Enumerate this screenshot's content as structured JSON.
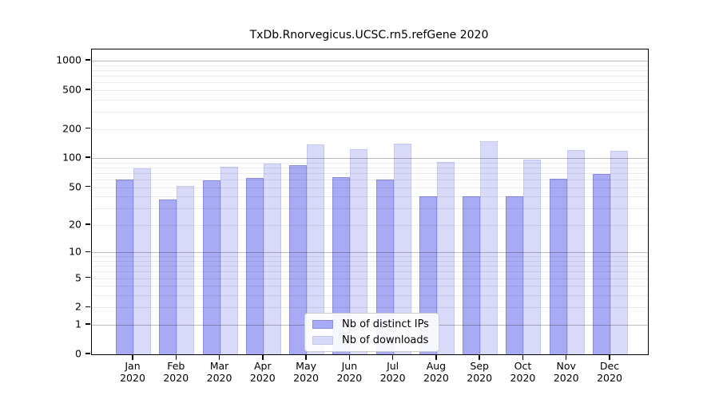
{
  "chart_data": {
    "type": "bar",
    "title": "TxDb.Rnorvegicus.UCSC.rn5.refGene 2020",
    "x_year": "2020",
    "categories": [
      "Jan",
      "Feb",
      "Mar",
      "Apr",
      "May",
      "Jun",
      "Jul",
      "Aug",
      "Sep",
      "Oct",
      "Nov",
      "Dec"
    ],
    "series": [
      {
        "name": "Nb of distinct IPs",
        "fill": "#a8aaf4",
        "edge": "#8b8de0",
        "values": [
          60,
          37,
          59,
          62,
          84,
          63,
          60,
          40,
          40,
          40,
          61,
          68
        ]
      },
      {
        "name": "Nb of downloads",
        "fill": "#d9daf9",
        "edge": "#c5c7f2",
        "values": [
          78,
          52,
          81,
          88,
          139,
          124,
          141,
          91,
          149,
          97,
          121,
          119
        ]
      }
    ],
    "y_ticks": [
      0,
      1,
      2,
      5,
      10,
      20,
      50,
      100,
      200,
      500,
      1000
    ],
    "y_scale": "log10(value+1)",
    "ylim": [
      0,
      1300
    ],
    "grid": true,
    "legend_position": "lower center",
    "axis_color": "#000000",
    "major_grid_values": [
      1,
      10,
      100,
      1000
    ]
  }
}
